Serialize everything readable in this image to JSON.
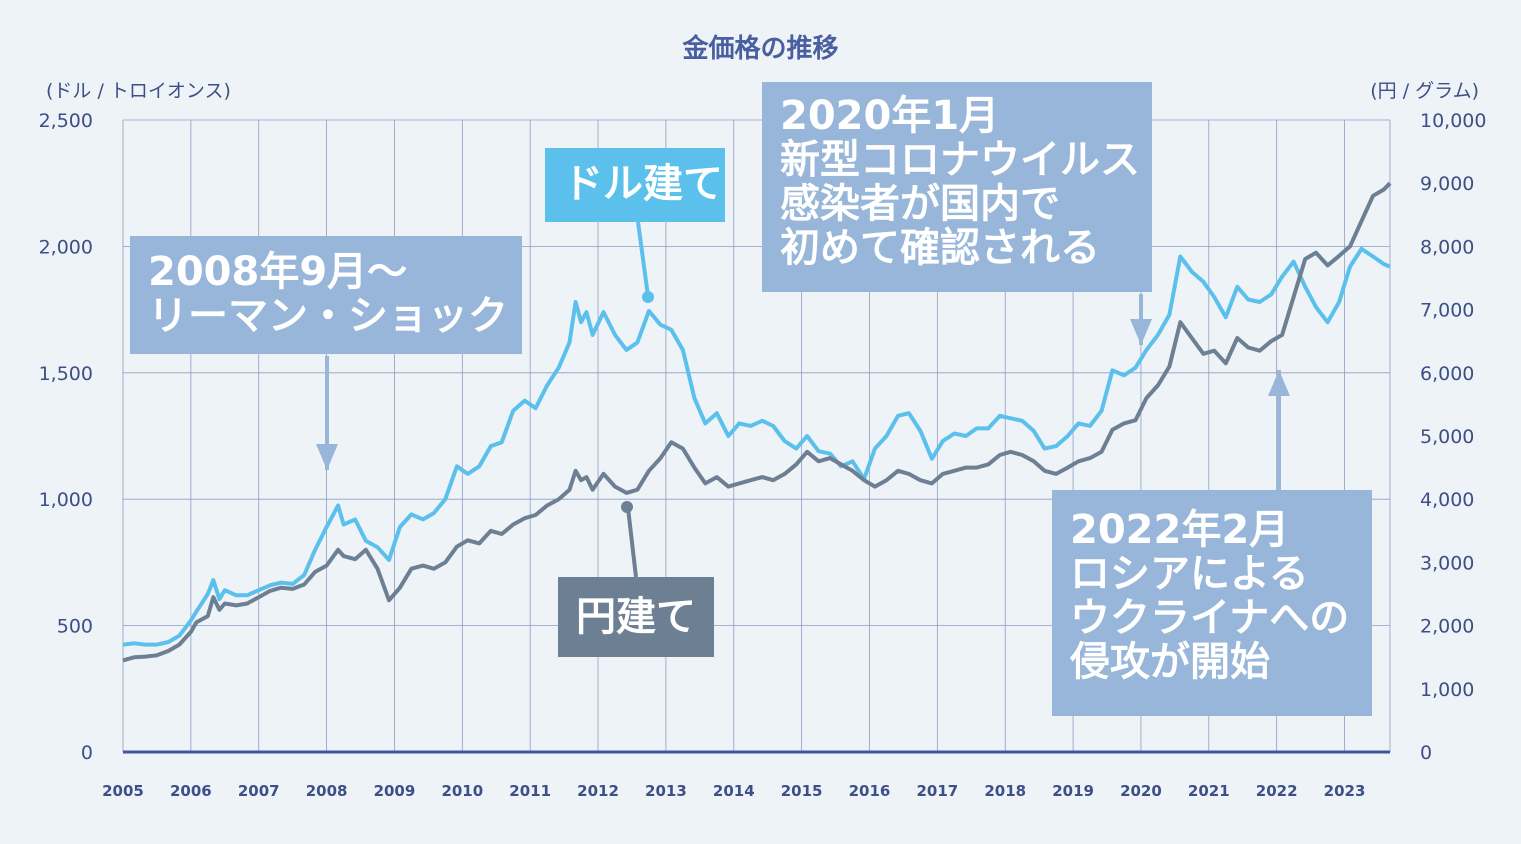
{
  "title": "金価格の推移",
  "units": {
    "left": "(ドル / トロイオンス)",
    "right": "(円 / グラム)"
  },
  "callouts": {
    "lehman": [
      "2008年9月～",
      "リーマン・ショック"
    ],
    "dollar": [
      "ドル建て"
    ],
    "covid": [
      "2020年1月",
      "新型コロナウイルス",
      "感染者が国内で",
      "初めて確認される"
    ],
    "yen": [
      "円建て"
    ],
    "ukraine": [
      "2022年2月",
      "ロシアによる",
      "ウクライナへの",
      "侵攻が開始"
    ]
  },
  "colors": {
    "dollar_line": "#5cc0ec",
    "yen_line": "#6d7f92",
    "grid": "#8d9ec4",
    "axis_text": "#3d4f86",
    "arrow": "#97b6d9",
    "baseline": "#3d56a0"
  },
  "chart_data": {
    "type": "line",
    "title": "金価格の推移",
    "ylabel_left": "(ドル / トロイオンス)",
    "ylabel_right": "(円 / グラム)",
    "x_tick_labels": [
      "2005",
      "2006",
      "2007",
      "2008",
      "2009",
      "2010",
      "2011",
      "2012",
      "2013",
      "2014",
      "2015",
      "2016",
      "2017",
      "2018",
      "2019",
      "2020",
      "2021",
      "2022",
      "2023"
    ],
    "ylim_left": [
      0,
      2500
    ],
    "yticks_left": [
      "0",
      "500",
      "1,000",
      "1,500",
      "2,000",
      "2,500"
    ],
    "ylim_right": [
      0,
      10000
    ],
    "yticks_right": [
      "0",
      "1,000",
      "2,000",
      "3,000",
      "4,000",
      "5,000",
      "6,000",
      "7,000",
      "8,000",
      "9,000",
      "10,000"
    ],
    "grid": true,
    "x_range": [
      2005.0,
      2023.67
    ],
    "series": [
      {
        "name": "ドル建て",
        "axis": "left",
        "points": [
          [
            2005.0,
            425
          ],
          [
            2005.17,
            430
          ],
          [
            2005.33,
            425
          ],
          [
            2005.5,
            425
          ],
          [
            2005.67,
            435
          ],
          [
            2005.83,
            460
          ],
          [
            2006.0,
            520
          ],
          [
            2006.08,
            555
          ],
          [
            2006.25,
            625
          ],
          [
            2006.33,
            680
          ],
          [
            2006.42,
            605
          ],
          [
            2006.5,
            640
          ],
          [
            2006.67,
            620
          ],
          [
            2006.83,
            620
          ],
          [
            2007.0,
            640
          ],
          [
            2007.17,
            660
          ],
          [
            2007.33,
            670
          ],
          [
            2007.5,
            665
          ],
          [
            2007.67,
            700
          ],
          [
            2007.83,
            800
          ],
          [
            2008.0,
            890
          ],
          [
            2008.17,
            975
          ],
          [
            2008.25,
            900
          ],
          [
            2008.42,
            920
          ],
          [
            2008.58,
            835
          ],
          [
            2008.75,
            810
          ],
          [
            2008.92,
            760
          ],
          [
            2009.08,
            890
          ],
          [
            2009.25,
            940
          ],
          [
            2009.42,
            920
          ],
          [
            2009.58,
            945
          ],
          [
            2009.75,
            1000
          ],
          [
            2009.92,
            1130
          ],
          [
            2010.08,
            1100
          ],
          [
            2010.25,
            1130
          ],
          [
            2010.42,
            1210
          ],
          [
            2010.58,
            1225
          ],
          [
            2010.75,
            1350
          ],
          [
            2010.92,
            1390
          ],
          [
            2011.08,
            1360
          ],
          [
            2011.25,
            1450
          ],
          [
            2011.42,
            1520
          ],
          [
            2011.58,
            1620
          ],
          [
            2011.67,
            1780
          ],
          [
            2011.75,
            1700
          ],
          [
            2011.83,
            1740
          ],
          [
            2011.92,
            1650
          ],
          [
            2012.08,
            1740
          ],
          [
            2012.25,
            1650
          ],
          [
            2012.42,
            1590
          ],
          [
            2012.58,
            1620
          ],
          [
            2012.75,
            1745
          ],
          [
            2012.92,
            1690
          ],
          [
            2013.08,
            1670
          ],
          [
            2013.25,
            1590
          ],
          [
            2013.42,
            1400
          ],
          [
            2013.58,
            1300
          ],
          [
            2013.75,
            1340
          ],
          [
            2013.92,
            1250
          ],
          [
            2014.08,
            1300
          ],
          [
            2014.25,
            1290
          ],
          [
            2014.42,
            1310
          ],
          [
            2014.58,
            1290
          ],
          [
            2014.75,
            1230
          ],
          [
            2014.92,
            1200
          ],
          [
            2015.08,
            1250
          ],
          [
            2015.25,
            1190
          ],
          [
            2015.42,
            1180
          ],
          [
            2015.58,
            1130
          ],
          [
            2015.75,
            1150
          ],
          [
            2015.92,
            1080
          ],
          [
            2016.08,
            1200
          ],
          [
            2016.25,
            1250
          ],
          [
            2016.42,
            1330
          ],
          [
            2016.58,
            1340
          ],
          [
            2016.75,
            1270
          ],
          [
            2016.92,
            1160
          ],
          [
            2017.08,
            1230
          ],
          [
            2017.25,
            1260
          ],
          [
            2017.42,
            1250
          ],
          [
            2017.58,
            1280
          ],
          [
            2017.75,
            1280
          ],
          [
            2017.92,
            1330
          ],
          [
            2018.08,
            1320
          ],
          [
            2018.25,
            1310
          ],
          [
            2018.42,
            1270
          ],
          [
            2018.58,
            1200
          ],
          [
            2018.75,
            1210
          ],
          [
            2018.92,
            1250
          ],
          [
            2019.08,
            1300
          ],
          [
            2019.25,
            1290
          ],
          [
            2019.42,
            1350
          ],
          [
            2019.58,
            1510
          ],
          [
            2019.75,
            1490
          ],
          [
            2019.92,
            1520
          ],
          [
            2020.08,
            1590
          ],
          [
            2020.25,
            1650
          ],
          [
            2020.42,
            1730
          ],
          [
            2020.58,
            1960
          ],
          [
            2020.75,
            1900
          ],
          [
            2020.92,
            1860
          ],
          [
            2021.08,
            1800
          ],
          [
            2021.25,
            1720
          ],
          [
            2021.42,
            1840
          ],
          [
            2021.58,
            1790
          ],
          [
            2021.75,
            1780
          ],
          [
            2021.92,
            1810
          ],
          [
            2022.08,
            1880
          ],
          [
            2022.25,
            1940
          ],
          [
            2022.42,
            1840
          ],
          [
            2022.58,
            1760
          ],
          [
            2022.75,
            1700
          ],
          [
            2022.92,
            1780
          ],
          [
            2023.08,
            1920
          ],
          [
            2023.25,
            1990
          ],
          [
            2023.42,
            1960
          ],
          [
            2023.58,
            1930
          ],
          [
            2023.67,
            1920
          ]
        ]
      },
      {
        "name": "円建て",
        "axis": "right",
        "points": [
          [
            2005.0,
            1450
          ],
          [
            2005.17,
            1500
          ],
          [
            2005.33,
            1510
          ],
          [
            2005.5,
            1530
          ],
          [
            2005.67,
            1600
          ],
          [
            2005.83,
            1700
          ],
          [
            2006.0,
            1900
          ],
          [
            2006.08,
            2050
          ],
          [
            2006.25,
            2150
          ],
          [
            2006.33,
            2450
          ],
          [
            2006.42,
            2250
          ],
          [
            2006.5,
            2350
          ],
          [
            2006.67,
            2320
          ],
          [
            2006.83,
            2350
          ],
          [
            2007.0,
            2450
          ],
          [
            2007.17,
            2550
          ],
          [
            2007.33,
            2600
          ],
          [
            2007.5,
            2580
          ],
          [
            2007.67,
            2650
          ],
          [
            2007.83,
            2850
          ],
          [
            2008.0,
            2950
          ],
          [
            2008.17,
            3200
          ],
          [
            2008.25,
            3100
          ],
          [
            2008.42,
            3050
          ],
          [
            2008.58,
            3200
          ],
          [
            2008.75,
            2900
          ],
          [
            2008.92,
            2400
          ],
          [
            2009.08,
            2600
          ],
          [
            2009.25,
            2900
          ],
          [
            2009.42,
            2950
          ],
          [
            2009.58,
            2900
          ],
          [
            2009.75,
            3000
          ],
          [
            2009.92,
            3250
          ],
          [
            2010.08,
            3350
          ],
          [
            2010.25,
            3300
          ],
          [
            2010.42,
            3500
          ],
          [
            2010.58,
            3450
          ],
          [
            2010.75,
            3600
          ],
          [
            2010.92,
            3700
          ],
          [
            2011.08,
            3750
          ],
          [
            2011.25,
            3900
          ],
          [
            2011.42,
            4000
          ],
          [
            2011.58,
            4150
          ],
          [
            2011.67,
            4450
          ],
          [
            2011.75,
            4300
          ],
          [
            2011.83,
            4350
          ],
          [
            2011.92,
            4150
          ],
          [
            2012.08,
            4400
          ],
          [
            2012.25,
            4200
          ],
          [
            2012.42,
            4100
          ],
          [
            2012.58,
            4150
          ],
          [
            2012.75,
            4450
          ],
          [
            2012.92,
            4650
          ],
          [
            2013.08,
            4900
          ],
          [
            2013.25,
            4800
          ],
          [
            2013.42,
            4500
          ],
          [
            2013.58,
            4250
          ],
          [
            2013.75,
            4350
          ],
          [
            2013.92,
            4200
          ],
          [
            2014.08,
            4250
          ],
          [
            2014.25,
            4300
          ],
          [
            2014.42,
            4350
          ],
          [
            2014.58,
            4300
          ],
          [
            2014.75,
            4400
          ],
          [
            2014.92,
            4550
          ],
          [
            2015.08,
            4750
          ],
          [
            2015.25,
            4600
          ],
          [
            2015.42,
            4650
          ],
          [
            2015.58,
            4550
          ],
          [
            2015.75,
            4450
          ],
          [
            2015.92,
            4300
          ],
          [
            2016.08,
            4200
          ],
          [
            2016.25,
            4300
          ],
          [
            2016.42,
            4450
          ],
          [
            2016.58,
            4400
          ],
          [
            2016.75,
            4300
          ],
          [
            2016.92,
            4250
          ],
          [
            2017.08,
            4400
          ],
          [
            2017.25,
            4450
          ],
          [
            2017.42,
            4500
          ],
          [
            2017.58,
            4500
          ],
          [
            2017.75,
            4550
          ],
          [
            2017.92,
            4700
          ],
          [
            2018.08,
            4750
          ],
          [
            2018.25,
            4700
          ],
          [
            2018.42,
            4600
          ],
          [
            2018.58,
            4450
          ],
          [
            2018.75,
            4400
          ],
          [
            2018.92,
            4500
          ],
          [
            2019.08,
            4600
          ],
          [
            2019.25,
            4650
          ],
          [
            2019.42,
            4750
          ],
          [
            2019.58,
            5100
          ],
          [
            2019.75,
            5200
          ],
          [
            2019.92,
            5250
          ],
          [
            2020.08,
            5600
          ],
          [
            2020.25,
            5800
          ],
          [
            2020.42,
            6100
          ],
          [
            2020.58,
            6800
          ],
          [
            2020.75,
            6550
          ],
          [
            2020.92,
            6300
          ],
          [
            2021.08,
            6350
          ],
          [
            2021.25,
            6150
          ],
          [
            2021.42,
            6550
          ],
          [
            2021.58,
            6400
          ],
          [
            2021.75,
            6350
          ],
          [
            2021.92,
            6500
          ],
          [
            2022.08,
            6600
          ],
          [
            2022.25,
            7200
          ],
          [
            2022.42,
            7800
          ],
          [
            2022.58,
            7900
          ],
          [
            2022.75,
            7700
          ],
          [
            2022.92,
            7850
          ],
          [
            2023.08,
            8000
          ],
          [
            2023.25,
            8400
          ],
          [
            2023.42,
            8800
          ],
          [
            2023.58,
            8900
          ],
          [
            2023.67,
            9000
          ]
        ]
      }
    ]
  }
}
